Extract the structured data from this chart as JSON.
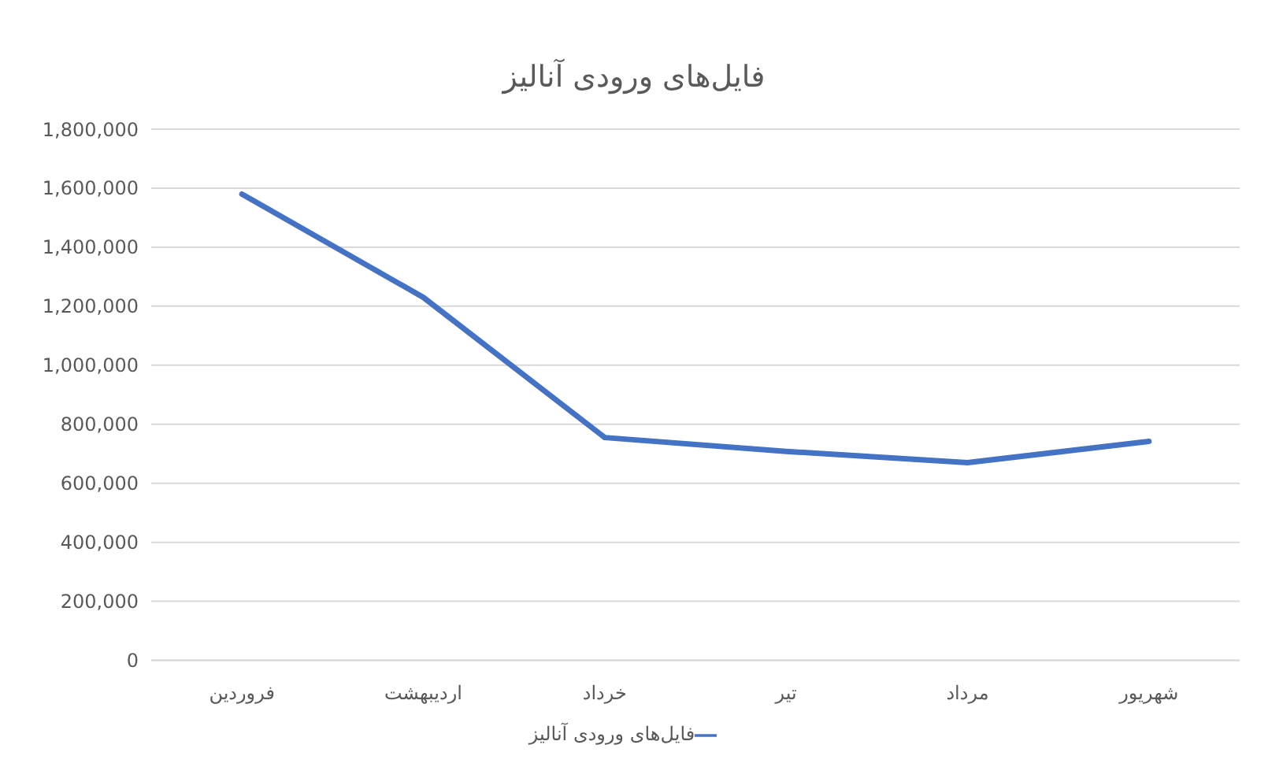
{
  "chart_data": {
    "type": "line",
    "title": "فایل‌های ورودی آنالیز",
    "categories": [
      "فروردین",
      "اردیبهشت",
      "خرداد",
      "تیر",
      "مرداد",
      "شهریور"
    ],
    "series": [
      {
        "name": "فایل‌های ورودی آنالیز",
        "color": "#4472c4",
        "values": [
          1580000,
          1230000,
          755000,
          708000,
          670000,
          742000
        ]
      }
    ],
    "ylim": [
      0,
      1800000
    ],
    "yticks": [
      0,
      {
        "value": 200000,
        "label": "200,000"
      },
      {
        "value": 400000,
        "label": "400,000"
      },
      {
        "value": 600000,
        "label": "600,000"
      },
      {
        "value": 800000,
        "label": "800,000"
      },
      {
        "value": 1000000,
        "label": "1,000,000"
      },
      {
        "value": 1200000,
        "label": "1,200,000"
      },
      {
        "value": 1400000,
        "label": "1,400,000"
      },
      {
        "value": 1600000,
        "label": "1,600,000"
      },
      {
        "value": 1800000,
        "label": "1,800,000"
      }
    ],
    "grid": "y",
    "legend": "bottom",
    "marker": "none",
    "line_style": "solid"
  }
}
